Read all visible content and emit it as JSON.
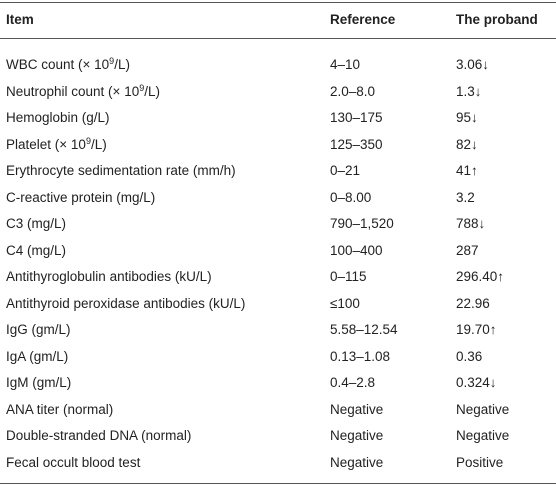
{
  "table": {
    "header": [
      "Item",
      "Reference",
      "The proband"
    ],
    "rows": [
      [
        [
          "WBC count (× 10",
          "9",
          "/L)"
        ],
        "4–10",
        "3.06↓"
      ],
      [
        [
          "Neutrophil count (× 10",
          "9",
          "/L)"
        ],
        "2.0–8.0",
        "1.3↓"
      ],
      [
        [
          "Hemoglobin (g/L)"
        ],
        "130–175",
        "95↓"
      ],
      [
        [
          "Platelet (× 10",
          "9",
          "/L)"
        ],
        "125–350",
        "82↓"
      ],
      [
        [
          "Erythrocyte sedimentation rate (mm/h)"
        ],
        "0–21",
        "41↑"
      ],
      [
        [
          "C-reactive protein (mg/L)"
        ],
        "0–8.00",
        "3.2"
      ],
      [
        [
          "C3 (mg/L)"
        ],
        "790–1,520",
        "788↓"
      ],
      [
        [
          "C4 (mg/L)"
        ],
        "100–400",
        "287"
      ],
      [
        [
          "Antithyroglobulin antibodies (kU/L)"
        ],
        "0–115",
        "296.40↑"
      ],
      [
        [
          "Antithyroid peroxidase antibodies (kU/L)"
        ],
        "≤100",
        "22.96"
      ],
      [
        [
          "IgG (gm/L)"
        ],
        "5.58–12.54",
        "19.70↑"
      ],
      [
        [
          "IgA (gm/L)"
        ],
        "0.13–1.08",
        "0.36"
      ],
      [
        [
          "IgM (gm/L)"
        ],
        "0.4–2.8",
        "0.324↓"
      ],
      [
        [
          "ANA titer (normal)"
        ],
        "Negative",
        "Negative"
      ],
      [
        [
          "Double-stranded DNA (normal)"
        ],
        "Negative",
        "Negative"
      ],
      [
        [
          "Fecal occult blood test"
        ],
        "Negative",
        "Positive"
      ]
    ]
  }
}
